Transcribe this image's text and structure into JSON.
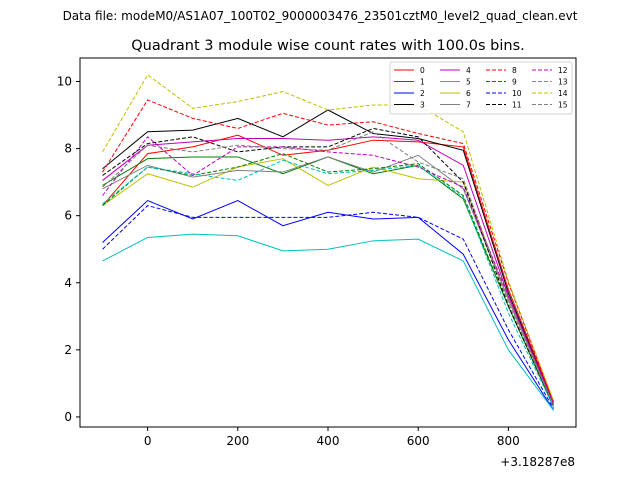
{
  "figure": {
    "suptitle": "Data file: modeM0/AS1A07_100T02_9000003476_23501cztM0_level2_quad_clean.evt",
    "title": "Quadrant 3 module wise count rates with 100.0s bins.",
    "x_offset_label": "+3.18287e8"
  },
  "chart_data": {
    "type": "line",
    "title": "Quadrant 3 module wise count rates with 100.0s bins.",
    "xlabel": "",
    "ylabel": "",
    "x_offset": 318287000,
    "x": [
      -100,
      0,
      100,
      200,
      300,
      400,
      500,
      600,
      700,
      800,
      900
    ],
    "xlim": [
      -150,
      950
    ],
    "ylim": [
      -0.3,
      10.7
    ],
    "xticks": [
      0,
      200,
      400,
      600,
      800
    ],
    "yticks": [
      0,
      2,
      4,
      6,
      8,
      10
    ],
    "grid": false,
    "legend_position": "top-right",
    "legend_columns": 4,
    "series": [
      {
        "name": "0",
        "color": "#ff0000",
        "dash": "solid",
        "values": [
          6.3,
          7.85,
          8.05,
          8.4,
          7.8,
          7.95,
          8.25,
          8.2,
          8.05,
          3.8,
          0.45
        ]
      },
      {
        "name": "1",
        "color": "#008000",
        "dash": "solid",
        "values": [
          6.9,
          7.7,
          7.75,
          7.75,
          7.25,
          7.75,
          7.25,
          7.5,
          6.5,
          3.3,
          0.3
        ]
      },
      {
        "name": "2",
        "color": "#0000ff",
        "dash": "solid",
        "values": [
          5.2,
          6.45,
          5.9,
          6.45,
          5.7,
          6.1,
          5.9,
          5.95,
          4.85,
          2.3,
          0.2
        ]
      },
      {
        "name": "3",
        "color": "#000000",
        "dash": "solid",
        "values": [
          7.4,
          8.5,
          8.55,
          8.9,
          8.35,
          9.15,
          8.45,
          8.3,
          7.95,
          3.7,
          0.4
        ]
      },
      {
        "name": "4",
        "color": "#bf00bf",
        "dash": "solid",
        "values": [
          7.05,
          8.1,
          8.2,
          8.3,
          8.3,
          8.25,
          8.35,
          8.25,
          7.5,
          3.6,
          0.4
        ]
      },
      {
        "name": "5",
        "color": "#00bfbf",
        "dash": "solid",
        "values": [
          4.65,
          5.35,
          5.45,
          5.4,
          4.95,
          5.0,
          5.25,
          5.3,
          4.65,
          2.0,
          0.2
        ]
      },
      {
        "name": "6",
        "color": "#bfbf00",
        "dash": "solid",
        "values": [
          6.3,
          7.25,
          6.85,
          7.45,
          7.7,
          6.9,
          7.45,
          7.1,
          7.0,
          3.5,
          0.35
        ]
      },
      {
        "name": "7",
        "color": "#808080",
        "dash": "solid",
        "values": [
          6.8,
          7.5,
          7.15,
          7.35,
          7.3,
          7.75,
          7.3,
          7.8,
          6.8,
          3.5,
          0.35
        ]
      },
      {
        "name": "8",
        "color": "#ff0000",
        "dash": "dashed",
        "values": [
          7.3,
          9.45,
          8.9,
          8.6,
          9.05,
          8.7,
          8.8,
          8.45,
          8.15,
          4.0,
          0.45
        ]
      },
      {
        "name": "9",
        "color": "#008000",
        "dash": "dashed",
        "values": [
          6.3,
          7.45,
          7.2,
          7.45,
          7.85,
          7.3,
          7.4,
          7.55,
          6.6,
          3.3,
          0.35
        ]
      },
      {
        "name": "10",
        "color": "#0000ff",
        "dash": "dashed",
        "values": [
          5.0,
          6.3,
          5.95,
          5.95,
          5.95,
          5.95,
          6.1,
          5.95,
          5.3,
          2.6,
          0.25
        ]
      },
      {
        "name": "11",
        "color": "#000000",
        "dash": "dashed",
        "values": [
          7.2,
          8.15,
          8.35,
          7.9,
          8.05,
          8.05,
          8.6,
          8.35,
          7.0,
          3.3,
          0.35
        ]
      },
      {
        "name": "12",
        "color": "#bf00bf",
        "dash": "dashed",
        "values": [
          6.6,
          8.35,
          7.2,
          8.05,
          8.05,
          7.9,
          7.8,
          7.45,
          6.85,
          3.6,
          0.4
        ]
      },
      {
        "name": "13",
        "color": "#00bfbf",
        "dash": "dashed",
        "values": [
          6.35,
          7.45,
          7.25,
          7.05,
          7.65,
          7.25,
          7.35,
          7.5,
          6.55,
          3.1,
          0.3
        ]
      },
      {
        "name": "14",
        "color": "#bfbf00",
        "dash": "dashed",
        "values": [
          7.9,
          10.2,
          9.2,
          9.4,
          9.7,
          9.15,
          9.3,
          9.3,
          8.5,
          4.05,
          0.5
        ]
      },
      {
        "name": "15",
        "color": "#808080",
        "dash": "dashed",
        "values": [
          6.85,
          8.1,
          7.9,
          8.1,
          8.0,
          7.95,
          8.5,
          7.6,
          7.1,
          3.4,
          0.35
        ]
      }
    ]
  }
}
